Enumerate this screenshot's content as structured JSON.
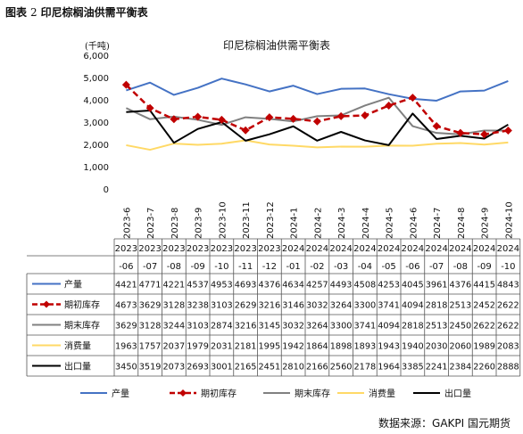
{
  "caption": {
    "prefix": "图表",
    "number": "2",
    "text": "印尼棕榈油供需平衡表"
  },
  "source": "数据来源：GAKPI 国元期货",
  "colors": {
    "产量": "#4472c4",
    "期初库存": "#c00000",
    "期末库存": "#808080",
    "消费量": "#ffd966",
    "出口量": "#000000"
  },
  "chart_data": {
    "type": "line",
    "title": "印尼棕榈油供需平衡表",
    "ylabel": "(千吨)",
    "ylim": [
      0,
      6000
    ],
    "yticks": [
      "0",
      "1,000",
      "2,000",
      "3,000",
      "4,000",
      "5,000",
      "6,000"
    ],
    "grid": false,
    "legend": "bottom",
    "x": [
      "2023-6",
      "2023-7",
      "2023-8",
      "2023-9",
      "2023-10",
      "2023-11",
      "2023-12",
      "2024-1",
      "2024-2",
      "2024-3",
      "2024-4",
      "2024-5",
      "2024-6",
      "2024-7",
      "2024-8",
      "2024-9",
      "2024-10"
    ],
    "table_years": [
      "2023",
      "2023",
      "2023",
      "2023",
      "2023",
      "2023",
      "2023",
      "2024",
      "2024",
      "2024",
      "2024",
      "2024",
      "2024",
      "2024",
      "2024",
      "2024",
      "2024"
    ],
    "table_months": [
      "-06",
      "-07",
      "-08",
      "-09",
      "-10",
      "-11",
      "-12",
      "-01",
      "-02",
      "-03",
      "-04",
      "-05",
      "-06",
      "-07",
      "-08",
      "-09",
      "-10"
    ],
    "series": [
      {
        "name": "产量",
        "values": [
          4421,
          4771,
          4221,
          4537,
          4953,
          4693,
          4376,
          4634,
          4257,
          4493,
          4508,
          4253,
          4045,
          3961,
          4376,
          4415,
          4843
        ]
      },
      {
        "name": "期初库存",
        "values": [
          4673,
          3629,
          3128,
          3238,
          3103,
          2629,
          3216,
          3146,
          3032,
          3264,
          3300,
          3741,
          4094,
          2818,
          2513,
          2452,
          2622
        ]
      },
      {
        "name": "期末库存",
        "values": [
          3629,
          3128,
          3244,
          3103,
          2874,
          3216,
          3145,
          3032,
          3264,
          3300,
          3741,
          4094,
          2818,
          2513,
          2450,
          2622,
          2622
        ]
      },
      {
        "name": "消费量",
        "values": [
          1963,
          1757,
          2037,
          1979,
          2031,
          2181,
          1995,
          1942,
          1864,
          1898,
          1893,
          1943,
          1940,
          2030,
          2060,
          1989,
          2083
        ]
      },
      {
        "name": "出口量",
        "values": [
          3450,
          3519,
          2073,
          2693,
          3001,
          2165,
          2451,
          2810,
          2166,
          2560,
          2178,
          1964,
          3385,
          2241,
          2384,
          2260,
          2888
        ]
      }
    ]
  }
}
